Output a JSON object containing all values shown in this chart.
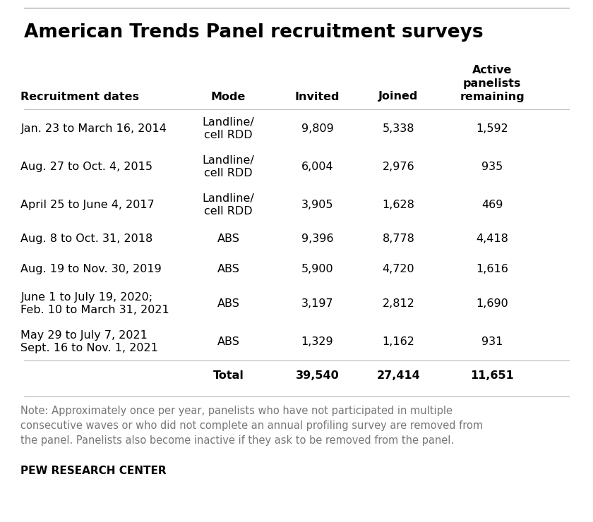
{
  "title": "American Trends Panel recruitment surveys",
  "rows": [
    {
      "date": "Jan. 23 to March 16, 2014",
      "date_line2": null,
      "mode": "Landline/\ncell RDD",
      "invited": "9,809",
      "joined": "5,338",
      "active": "1,592",
      "two_line_mode": true
    },
    {
      "date": "Aug. 27 to Oct. 4, 2015",
      "date_line2": null,
      "mode": "Landline/\ncell RDD",
      "invited": "6,004",
      "joined": "2,976",
      "active": "935",
      "two_line_mode": true
    },
    {
      "date": "April 25 to June 4, 2017",
      "date_line2": null,
      "mode": "Landline/\ncell RDD",
      "invited": "3,905",
      "joined": "1,628",
      "active": "469",
      "two_line_mode": true
    },
    {
      "date": "Aug. 8 to Oct. 31, 2018",
      "date_line2": null,
      "mode": "ABS",
      "invited": "9,396",
      "joined": "8,778",
      "active": "4,418",
      "two_line_mode": false
    },
    {
      "date": "Aug. 19 to Nov. 30, 2019",
      "date_line2": null,
      "mode": "ABS",
      "invited": "5,900",
      "joined": "4,720",
      "active": "1,616",
      "two_line_mode": false
    },
    {
      "date": "June 1 to July 19, 2020;",
      "date_line2": "Feb. 10 to March 31, 2021",
      "mode": "ABS",
      "invited": "3,197",
      "joined": "2,812",
      "active": "1,690",
      "two_line_mode": false
    },
    {
      "date": "May 29 to July 7, 2021",
      "date_line2": "Sept. 16 to Nov. 1, 2021",
      "mode": "ABS",
      "invited": "1,329",
      "joined": "1,162",
      "active": "931",
      "two_line_mode": false
    }
  ],
  "total_row": {
    "label": "Total",
    "invited": "39,540",
    "joined": "27,414",
    "active": "11,651"
  },
  "note": "Note: Approximately once per year, panelists who have not participated in multiple\nconsecutive waves or who did not complete an annual profiling survey are removed from\nthe panel. Panelists also become inactive if they ask to be removed from the panel.",
  "source": "PEW RESEARCH CENTER",
  "bg_color": "#ffffff",
  "text_color": "#000000",
  "note_color": "#777777",
  "top_line_color": "#999999",
  "sep_line_color": "#bbbbbb",
  "title_fontsize": 19,
  "header_fontsize": 11.5,
  "data_fontsize": 11.5,
  "note_fontsize": 10.5,
  "source_fontsize": 11
}
